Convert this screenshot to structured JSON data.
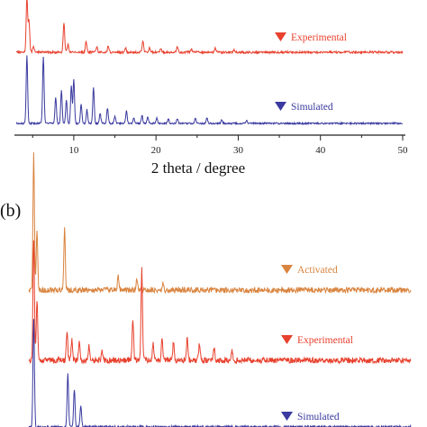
{
  "chart_data": [
    {
      "type": "line",
      "panel": "a",
      "xlabel": "2 theta / degree",
      "ylabel": "",
      "xlim": [
        3,
        50
      ],
      "xticks": [
        10,
        20,
        30,
        40,
        50
      ],
      "grid": false,
      "legend_placement": "right",
      "series": [
        {
          "name": "Experimental",
          "color": "#e8412e",
          "legend_marker": "triangle-down",
          "peaks": [
            {
              "x": 4.3,
              "h": 1.0
            },
            {
              "x": 4.55,
              "h": 0.6
            },
            {
              "x": 5.1,
              "h": 0.12
            },
            {
              "x": 8.8,
              "h": 0.55
            },
            {
              "x": 9.3,
              "h": 0.15
            },
            {
              "x": 11.5,
              "h": 0.2
            },
            {
              "x": 12.8,
              "h": 0.1
            },
            {
              "x": 14.2,
              "h": 0.12
            },
            {
              "x": 16.3,
              "h": 0.08
            },
            {
              "x": 18.4,
              "h": 0.22
            },
            {
              "x": 19.2,
              "h": 0.08
            },
            {
              "x": 20.6,
              "h": 0.07
            },
            {
              "x": 22.6,
              "h": 0.1
            },
            {
              "x": 24.3,
              "h": 0.06
            },
            {
              "x": 27.2,
              "h": 0.09
            },
            {
              "x": 29.5,
              "h": 0.05
            }
          ]
        },
        {
          "name": "Simulated",
          "color": "#3a3aa0",
          "legend_marker": "triangle-down",
          "peaks": [
            {
              "x": 4.3,
              "h": 1.0
            },
            {
              "x": 6.3,
              "h": 0.98
            },
            {
              "x": 7.8,
              "h": 0.38
            },
            {
              "x": 8.5,
              "h": 0.48
            },
            {
              "x": 9.1,
              "h": 0.35
            },
            {
              "x": 9.7,
              "h": 0.55
            },
            {
              "x": 10.0,
              "h": 0.65
            },
            {
              "x": 10.9,
              "h": 0.28
            },
            {
              "x": 11.6,
              "h": 0.2
            },
            {
              "x": 12.4,
              "h": 0.52
            },
            {
              "x": 13.2,
              "h": 0.15
            },
            {
              "x": 14.1,
              "h": 0.22
            },
            {
              "x": 15.0,
              "h": 0.1
            },
            {
              "x": 16.4,
              "h": 0.18
            },
            {
              "x": 17.3,
              "h": 0.09
            },
            {
              "x": 18.3,
              "h": 0.12
            },
            {
              "x": 19.0,
              "h": 0.1
            },
            {
              "x": 20.1,
              "h": 0.08
            },
            {
              "x": 21.5,
              "h": 0.06
            },
            {
              "x": 22.6,
              "h": 0.07
            },
            {
              "x": 24.8,
              "h": 0.08
            },
            {
              "x": 26.2,
              "h": 0.08
            },
            {
              "x": 28.0,
              "h": 0.05
            },
            {
              "x": 31.0,
              "h": 0.04
            }
          ]
        }
      ]
    },
    {
      "type": "line",
      "panel": "b",
      "panel_label": "(b)",
      "xlabel": "",
      "ylabel": "",
      "xlim": [
        3,
        50
      ],
      "grid": false,
      "legend_placement": "right",
      "series": [
        {
          "name": "Activated",
          "color": "#d9843f",
          "legend_marker": "triangle-down",
          "peaks": [
            {
              "x": 3.6,
              "h": 1.0
            },
            {
              "x": 4.0,
              "h": 0.45
            },
            {
              "x": 7.4,
              "h": 0.45
            },
            {
              "x": 14.0,
              "h": 0.1
            },
            {
              "x": 16.3,
              "h": 0.08
            },
            {
              "x": 19.5,
              "h": 0.06
            }
          ]
        },
        {
          "name": "Experimental",
          "color": "#e8412e",
          "legend_marker": "triangle-down",
          "peaks": [
            {
              "x": 3.6,
              "h": 1.0
            },
            {
              "x": 4.0,
              "h": 0.5
            },
            {
              "x": 7.7,
              "h": 0.22
            },
            {
              "x": 8.3,
              "h": 0.16
            },
            {
              "x": 9.2,
              "h": 0.15
            },
            {
              "x": 10.4,
              "h": 0.12
            },
            {
              "x": 12.0,
              "h": 0.08
            },
            {
              "x": 15.8,
              "h": 0.35
            },
            {
              "x": 16.9,
              "h": 0.75
            },
            {
              "x": 18.3,
              "h": 0.15
            },
            {
              "x": 19.4,
              "h": 0.18
            },
            {
              "x": 20.8,
              "h": 0.15
            },
            {
              "x": 22.5,
              "h": 0.2
            },
            {
              "x": 24.0,
              "h": 0.14
            },
            {
              "x": 25.8,
              "h": 0.1
            },
            {
              "x": 28.0,
              "h": 0.09
            }
          ]
        },
        {
          "name": "Simulated",
          "color": "#3a3aa0",
          "legend_marker": "triangle-down",
          "peaks": [
            {
              "x": 3.6,
              "h": 1.0
            },
            {
              "x": 7.8,
              "h": 0.5
            },
            {
              "x": 8.6,
              "h": 0.35
            },
            {
              "x": 9.4,
              "h": 0.2
            }
          ]
        }
      ]
    }
  ]
}
